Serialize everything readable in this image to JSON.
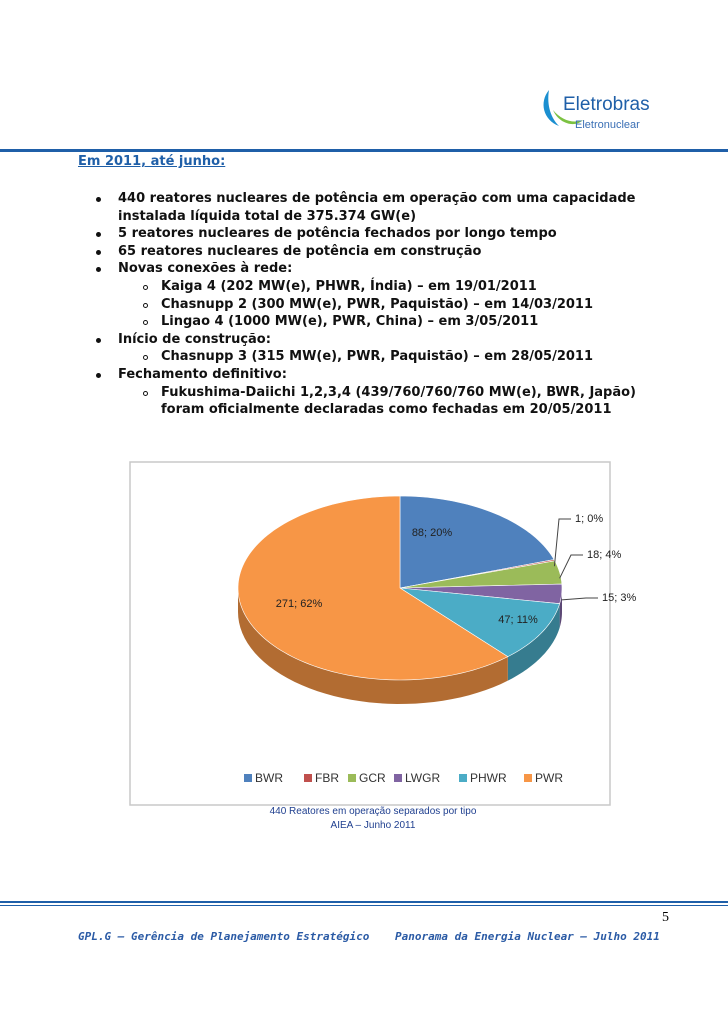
{
  "header": {
    "brand": "Eletrobras",
    "sub_brand": "Eletronuclear"
  },
  "body": {
    "heading": "Em 2011, até junho:",
    "bullets": [
      {
        "lines": [
          "440 reatores nucleares de potência em operação com uma capacidade",
          "instalada líquida total de 375.374 GW(e)"
        ]
      },
      {
        "lines": [
          "5 reatores nucleares de potência fechados por longo tempo"
        ]
      },
      {
        "lines": [
          "65 reatores nucleares de potência em construção"
        ]
      },
      {
        "lines": [
          "Novas conexões à rede:"
        ],
        "sub": [
          {
            "lines": [
              "Kaiga 4 (202 MW(e), PHWR, Índia) – em 19/01/2011"
            ]
          },
          {
            "lines": [
              "Chasnupp 2 (300 MW(e), PWR, Paquistão) – em 14/03/2011"
            ]
          },
          {
            "lines": [
              "Lingao 4 (1000 MW(e), PWR, China) – em 3/05/2011"
            ]
          }
        ]
      },
      {
        "lines": [
          "Início de construção:"
        ],
        "sub": [
          {
            "lines": [
              "Chasnupp 3 (315 MW(e), PWR, Paquistão) – em 28/05/2011"
            ]
          }
        ]
      },
      {
        "lines": [
          "Fechamento definitivo:"
        ],
        "sub": [
          {
            "lines": [
              "Fukushima-Daiichi 1,2,3,4 (439/760/760/760 MW(e), BWR, Japão)",
              "foram  oficialmente declaradas como fechadas em 20/05/2011"
            ]
          }
        ]
      }
    ]
  },
  "chart_data": {
    "type": "pie",
    "categories": [
      "BWR",
      "FBR",
      "GCR",
      "LWGR",
      "PHWR",
      "PWR"
    ],
    "values": [
      88,
      1,
      18,
      15,
      47,
      271
    ],
    "value_labels": [
      "88; 20%",
      "1; 0%",
      "18; 4%",
      "15; 3%",
      "47; 11%",
      "271; 62%"
    ],
    "colors": [
      "#4f81bd",
      "#c0504d",
      "#9bbb59",
      "#8064a2",
      "#4bacc6",
      "#f79646"
    ],
    "legend": "bottom"
  },
  "caption": [
    "440 Reatores em operação separados por tipo",
    "AIEA – Junho 2011"
  ],
  "footer": {
    "left": "GPL.G – Gerência de Planejamento Estratégico",
    "right": "Panorama da Energia Nuclear – Julho 2011",
    "page": "5"
  }
}
